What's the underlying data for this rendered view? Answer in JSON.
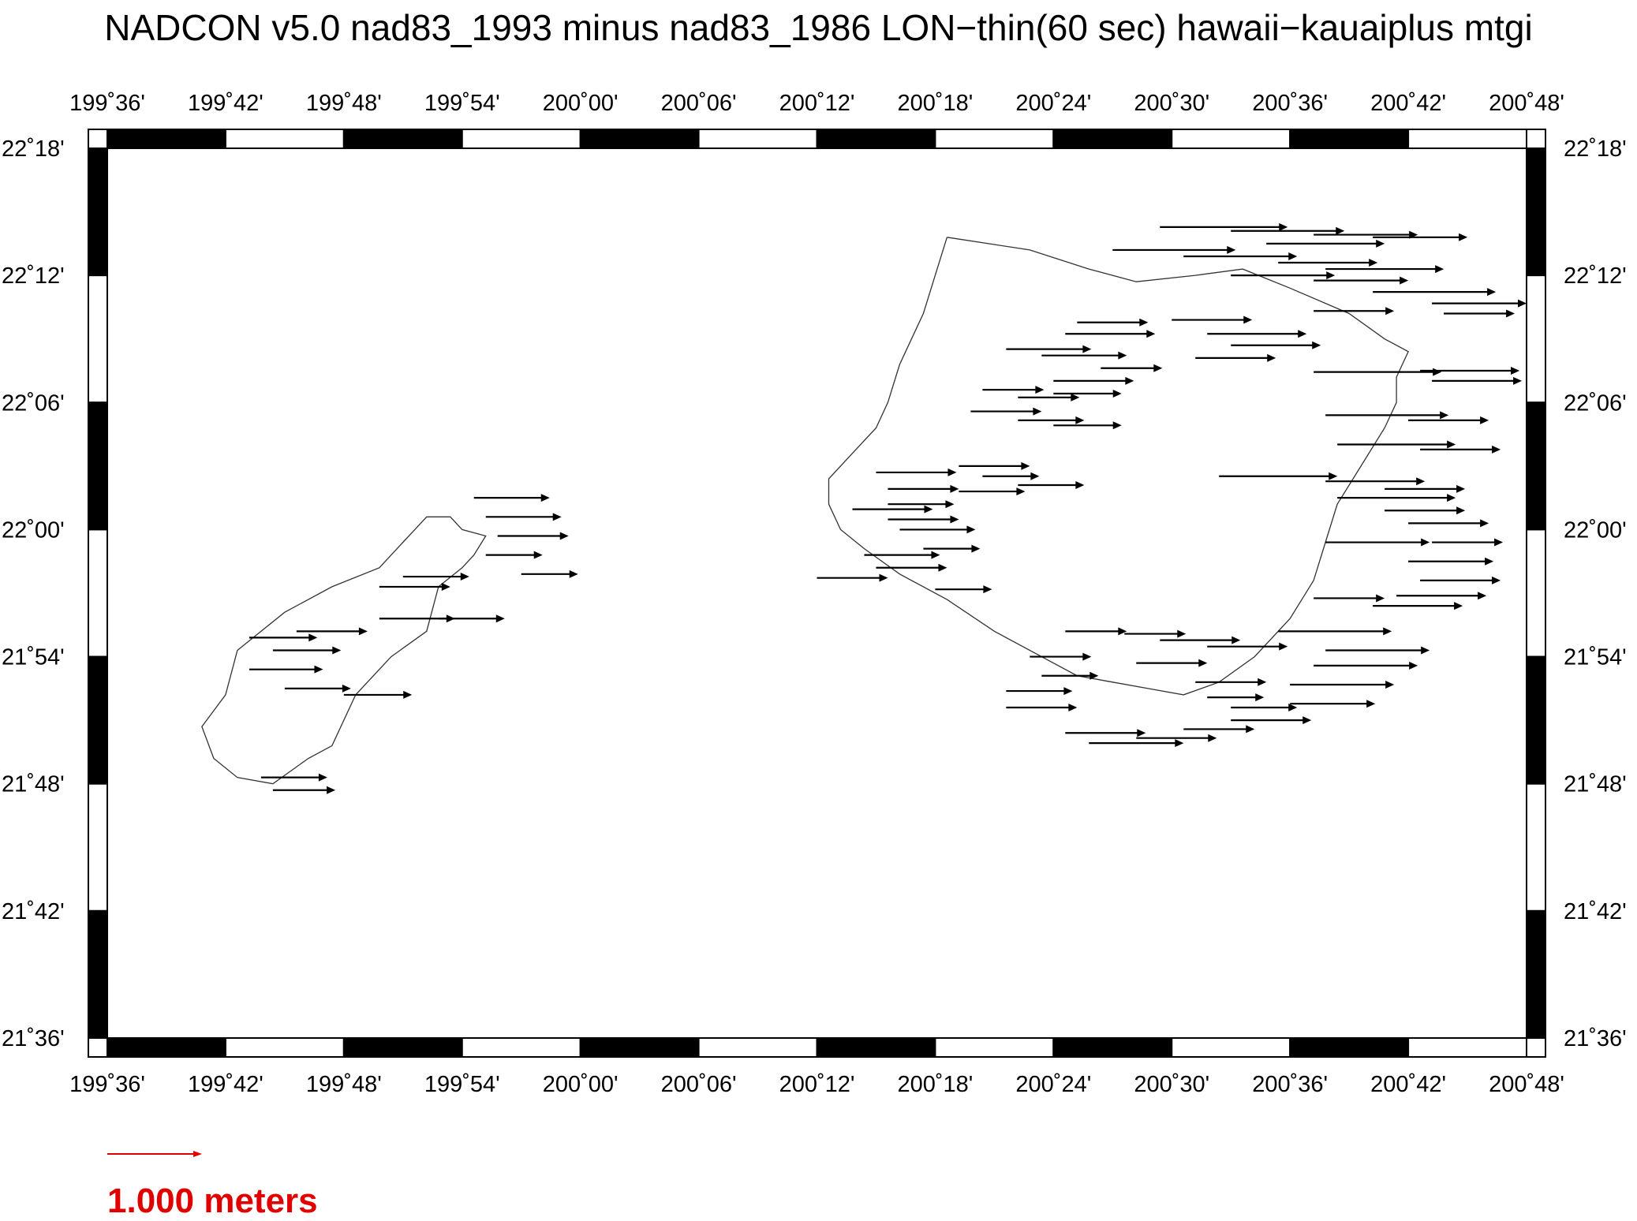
{
  "title": "NADCON v5.0 nad83_1993 minus nad83_1986 LON−thin(60 sec) hawaii−kauaiplus mtgi",
  "map": {
    "lon_range": [
      "199°36'",
      "200°48'"
    ],
    "lat_range": [
      "21°36'",
      "22°18'"
    ],
    "lon_ticks": [
      "199˚36'",
      "199˚42'",
      "199˚48'",
      "199˚54'",
      "200˚00'",
      "200˚06'",
      "200˚12'",
      "200˚18'",
      "200˚24'",
      "200˚30'",
      "200˚36'",
      "200˚42'",
      "200˚48'"
    ],
    "lat_ticks": [
      "22˚18'",
      "22˚12'",
      "22˚06'",
      "22˚00'",
      "21˚54'",
      "21˚48'",
      "21˚42'",
      "21˚36'"
    ],
    "frame_style": "alternating black/white graduated border",
    "features": [
      "Niihau island outline",
      "Kauai island outline"
    ],
    "vector_color": "#000000",
    "vector_direction": "east"
  },
  "legend": {
    "scale_label": "1.000 meters",
    "scale_color": "#e00000"
  },
  "chart_data": {
    "type": "vector-field",
    "lon_unit": "degrees east",
    "lat_unit": "degrees north",
    "vector_unit": "meters (eastward)",
    "reference_vector": 1.0,
    "vectors": [
      [
        199.91,
        22.025,
        0.8
      ],
      [
        199.92,
        22.01,
        0.8
      ],
      [
        199.93,
        21.995,
        0.75
      ],
      [
        199.92,
        21.98,
        0.6
      ],
      [
        199.85,
        21.963,
        0.7
      ],
      [
        199.83,
        21.955,
        0.75
      ],
      [
        199.95,
        21.965,
        0.6
      ],
      [
        199.83,
        21.93,
        0.8
      ],
      [
        199.76,
        21.92,
        0.75
      ],
      [
        199.88,
        21.93,
        0.7
      ],
      [
        199.72,
        21.915,
        0.72
      ],
      [
        199.74,
        21.905,
        0.72
      ],
      [
        199.72,
        21.89,
        0.78
      ],
      [
        199.75,
        21.875,
        0.7
      ],
      [
        199.8,
        21.87,
        0.72
      ],
      [
        199.73,
        21.805,
        0.7
      ],
      [
        199.74,
        21.795,
        0.66
      ],
      [
        200.49,
        22.238,
        1.35
      ],
      [
        200.55,
        22.235,
        1.2
      ],
      [
        200.62,
        22.232,
        1.1
      ],
      [
        200.67,
        22.23,
        1.0
      ],
      [
        200.58,
        22.225,
        1.25
      ],
      [
        200.45,
        22.22,
        1.3
      ],
      [
        200.51,
        22.215,
        1.2
      ],
      [
        200.59,
        22.21,
        1.05
      ],
      [
        200.63,
        22.205,
        1.25
      ],
      [
        200.55,
        22.2,
        1.1
      ],
      [
        200.62,
        22.196,
        1.0
      ],
      [
        200.67,
        22.187,
        1.3
      ],
      [
        200.72,
        22.178,
        1.1
      ],
      [
        200.62,
        22.172,
        0.85
      ],
      [
        200.73,
        22.17,
        0.75
      ],
      [
        200.42,
        22.163,
        0.75
      ],
      [
        200.5,
        22.165,
        0.85
      ],
      [
        200.41,
        22.154,
        0.95
      ],
      [
        200.53,
        22.154,
        1.05
      ],
      [
        200.55,
        22.145,
        0.95
      ],
      [
        200.36,
        22.142,
        0.9
      ],
      [
        200.52,
        22.135,
        0.85
      ],
      [
        200.39,
        22.137,
        0.9
      ],
      [
        200.44,
        22.127,
        0.65
      ],
      [
        200.4,
        22.117,
        0.85
      ],
      [
        200.62,
        22.124,
        1.35
      ],
      [
        200.71,
        22.125,
        1.05
      ],
      [
        200.72,
        22.117,
        0.95
      ],
      [
        200.34,
        22.11,
        0.65
      ],
      [
        200.37,
        22.104,
        0.65
      ],
      [
        200.4,
        22.107,
        0.72
      ],
      [
        200.33,
        22.093,
        0.75
      ],
      [
        200.37,
        22.086,
        0.7
      ],
      [
        200.4,
        22.082,
        0.72
      ],
      [
        200.63,
        22.09,
        1.3
      ],
      [
        200.7,
        22.086,
        0.85
      ],
      [
        200.64,
        22.067,
        1.25
      ],
      [
        200.71,
        22.063,
        0.85
      ],
      [
        200.32,
        22.05,
        0.75
      ],
      [
        200.25,
        22.045,
        0.85
      ],
      [
        200.34,
        22.042,
        0.6
      ],
      [
        200.37,
        22.035,
        0.7
      ],
      [
        200.32,
        22.03,
        0.7
      ],
      [
        200.26,
        22.032,
        0.75
      ],
      [
        200.26,
        22.02,
        0.7
      ],
      [
        200.23,
        22.016,
        0.85
      ],
      [
        200.26,
        22.008,
        0.75
      ],
      [
        200.27,
        22.0,
        0.8
      ],
      [
        200.29,
        21.985,
        0.6
      ],
      [
        200.24,
        21.98,
        0.8
      ],
      [
        200.25,
        21.97,
        0.75
      ],
      [
        200.2,
        21.962,
        0.75
      ],
      [
        200.3,
        21.953,
        0.6
      ],
      [
        200.54,
        22.042,
        1.25
      ],
      [
        200.63,
        22.038,
        1.05
      ],
      [
        200.68,
        22.032,
        0.85
      ],
      [
        200.64,
        22.025,
        1.25
      ],
      [
        200.68,
        22.015,
        0.85
      ],
      [
        200.7,
        22.005,
        0.85
      ],
      [
        200.63,
        21.99,
        1.1
      ],
      [
        200.72,
        21.99,
        0.75
      ],
      [
        200.7,
        21.975,
        0.9
      ],
      [
        200.71,
        21.96,
        0.85
      ],
      [
        200.69,
        21.948,
        0.95
      ],
      [
        200.67,
        21.94,
        0.95
      ],
      [
        200.62,
        21.946,
        0.75
      ],
      [
        200.59,
        21.92,
        1.2
      ],
      [
        200.63,
        21.905,
        1.1
      ],
      [
        200.62,
        21.893,
        1.1
      ],
      [
        200.6,
        21.878,
        1.1
      ],
      [
        200.6,
        21.863,
        0.9
      ],
      [
        200.55,
        21.85,
        0.85
      ],
      [
        200.51,
        21.843,
        0.75
      ],
      [
        200.47,
        21.836,
        0.85
      ],
      [
        200.43,
        21.832,
        1.0
      ],
      [
        200.41,
        21.84,
        0.85
      ],
      [
        200.36,
        21.86,
        0.75
      ],
      [
        200.36,
        21.873,
        0.7
      ],
      [
        200.39,
        21.885,
        0.6
      ],
      [
        200.38,
        21.9,
        0.65
      ],
      [
        200.41,
        21.92,
        0.65
      ],
      [
        200.46,
        21.918,
        0.65
      ],
      [
        200.49,
        21.913,
        0.85
      ],
      [
        200.53,
        21.908,
        0.85
      ],
      [
        200.47,
        21.895,
        0.75
      ],
      [
        200.52,
        21.88,
        0.75
      ],
      [
        200.53,
        21.868,
        0.6
      ],
      [
        200.55,
        21.86,
        0.7
      ]
    ],
    "coastlines": {
      "niihau": [
        [
          199.86,
          22.0
        ],
        [
          199.87,
          22.01
        ],
        [
          199.89,
          22.01
        ],
        [
          199.9,
          22.0
        ],
        [
          199.92,
          21.995
        ],
        [
          199.91,
          21.98
        ],
        [
          199.9,
          21.97
        ],
        [
          199.88,
          21.955
        ],
        [
          199.87,
          21.92
        ],
        [
          199.84,
          21.9
        ],
        [
          199.81,
          21.87
        ],
        [
          199.79,
          21.83
        ],
        [
          199.77,
          21.82
        ],
        [
          199.74,
          21.8
        ],
        [
          199.71,
          21.805
        ],
        [
          199.69,
          21.82
        ],
        [
          199.68,
          21.845
        ],
        [
          199.7,
          21.87
        ],
        [
          199.71,
          21.905
        ],
        [
          199.75,
          21.935
        ],
        [
          199.79,
          21.955
        ],
        [
          199.83,
          21.97
        ],
        [
          199.85,
          21.99
        ],
        [
          199.86,
          22.0
        ]
      ],
      "kauai": [
        [
          200.31,
          22.23
        ],
        [
          200.38,
          22.22
        ],
        [
          200.43,
          22.205
        ],
        [
          200.47,
          22.195
        ],
        [
          200.52,
          22.2
        ],
        [
          200.56,
          22.205
        ],
        [
          200.6,
          22.19
        ],
        [
          200.65,
          22.17
        ],
        [
          200.68,
          22.15
        ],
        [
          200.7,
          22.14
        ],
        [
          200.69,
          22.12
        ],
        [
          200.69,
          22.1
        ],
        [
          200.68,
          22.08
        ],
        [
          200.66,
          22.05
        ],
        [
          200.64,
          22.02
        ],
        [
          200.63,
          21.99
        ],
        [
          200.62,
          21.96
        ],
        [
          200.6,
          21.93
        ],
        [
          200.57,
          21.9
        ],
        [
          200.54,
          21.88
        ],
        [
          200.51,
          21.87
        ],
        [
          200.48,
          21.875
        ],
        [
          200.45,
          21.88
        ],
        [
          200.42,
          21.885
        ],
        [
          200.39,
          21.9
        ],
        [
          200.35,
          21.92
        ],
        [
          200.31,
          21.945
        ],
        [
          200.27,
          21.965
        ],
        [
          200.24,
          21.985
        ],
        [
          200.22,
          22.0
        ],
        [
          200.21,
          22.02
        ],
        [
          200.21,
          22.04
        ],
        [
          200.23,
          22.06
        ],
        [
          200.25,
          22.08
        ],
        [
          200.26,
          22.1
        ],
        [
          200.27,
          22.13
        ],
        [
          200.28,
          22.15
        ],
        [
          200.29,
          22.17
        ],
        [
          200.3,
          22.2
        ],
        [
          200.31,
          22.23
        ]
      ]
    }
  }
}
